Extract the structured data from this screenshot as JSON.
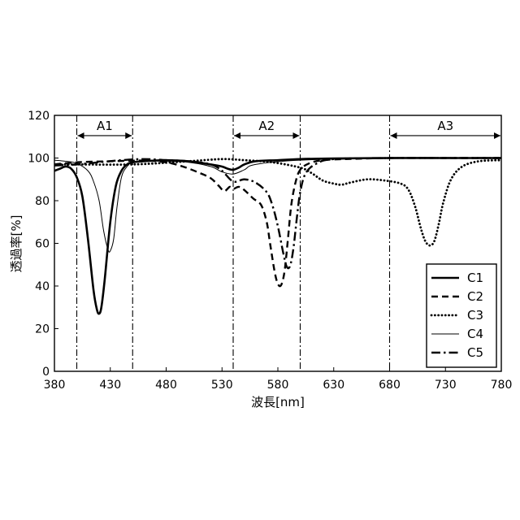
{
  "chart_data": {
    "type": "line",
    "title": "",
    "xlabel": "波長[nm]",
    "ylabel": "透過率[%]",
    "xlim": [
      380,
      780
    ],
    "ylim": [
      0,
      120
    ],
    "xticks": [
      380,
      430,
      480,
      530,
      580,
      630,
      680,
      730,
      780
    ],
    "yticks": [
      0,
      20,
      40,
      60,
      80,
      100,
      120
    ],
    "grid": false,
    "legend_position": "bottom-right",
    "regions": [
      {
        "label": "A1",
        "x0": 400,
        "x1": 450
      },
      {
        "label": "A2",
        "x0": 540,
        "x1": 600
      },
      {
        "label": "A3",
        "x0": 680,
        "x1": 780
      }
    ],
    "series": [
      {
        "name": "C1",
        "style": "solid-thick",
        "x": [
          380,
          385,
          390,
          395,
          400,
          405,
          410,
          415,
          418,
          420,
          422,
          425,
          430,
          435,
          440,
          445,
          450,
          460,
          480,
          500,
          520,
          530,
          535,
          540,
          545,
          550,
          560,
          580,
          600,
          630,
          680,
          730,
          780
        ],
        "y": [
          94,
          95,
          96,
          95,
          91,
          82,
          62,
          38,
          29,
          27,
          30,
          43,
          70,
          87,
          94,
          97,
          98,
          98.5,
          99,
          98.5,
          97,
          96,
          95,
          94.5,
          95.5,
          97,
          98.5,
          99,
          99.5,
          99.8,
          100,
          100,
          100
        ]
      },
      {
        "name": "C2",
        "style": "dashed",
        "x": [
          380,
          400,
          430,
          460,
          480,
          495,
          510,
          520,
          527,
          532,
          537,
          540,
          545,
          550,
          558,
          565,
          570,
          573,
          577,
          580,
          583,
          586,
          589,
          592,
          596,
          600,
          608,
          620,
          640,
          680,
          730,
          780
        ],
        "y": [
          97,
          98,
          98.5,
          98.8,
          98,
          96,
          93,
          90.5,
          87,
          84.5,
          86.5,
          85.5,
          86.5,
          85,
          81,
          78,
          70,
          60,
          47,
          41,
          40.5,
          47,
          62,
          78,
          89,
          94.5,
          97.5,
          99,
          99.5,
          100,
          100,
          100
        ]
      },
      {
        "name": "C3",
        "style": "dotted",
        "x": [
          380,
          400,
          450,
          500,
          530,
          550,
          575,
          600,
          610,
          620,
          630,
          637,
          645,
          660,
          675,
          690,
          697,
          703,
          708,
          712,
          716,
          720,
          724,
          728,
          735,
          745,
          760,
          780
        ],
        "y": [
          97,
          97,
          97,
          98.5,
          99.5,
          99,
          98,
          95.5,
          93,
          89.5,
          88,
          87.5,
          88.5,
          90,
          89.5,
          88,
          85,
          77,
          67,
          61,
          59,
          61,
          69,
          79,
          90,
          96,
          98.5,
          99
        ]
      },
      {
        "name": "C4",
        "style": "solid-thin",
        "x": [
          380,
          390,
          400,
          410,
          415,
          420,
          424,
          428,
          430,
          433,
          436,
          440,
          445,
          450,
          460,
          480,
          500,
          520,
          530,
          540,
          550,
          560,
          600,
          680,
          780
        ],
        "y": [
          99,
          98.5,
          97.5,
          94,
          89,
          80,
          66,
          57,
          56.5,
          62,
          77,
          91,
          96,
          98,
          98.5,
          98.5,
          98,
          96,
          93.5,
          92.5,
          94.5,
          97,
          99,
          100,
          100
        ]
      },
      {
        "name": "C5",
        "style": "dashdot",
        "x": [
          380,
          400,
          420,
          440,
          460,
          480,
          500,
          520,
          530,
          540,
          550,
          560,
          570,
          575,
          580,
          585,
          588,
          591,
          594,
          597,
          600,
          605,
          615,
          630,
          680,
          780
        ],
        "y": [
          96.5,
          97,
          98,
          99,
          99.5,
          99,
          98.5,
          97,
          94,
          89,
          90,
          88.5,
          84,
          78,
          68,
          55,
          49,
          49.5,
          58,
          72,
          84,
          93,
          97.5,
          99.5,
          100,
          100
        ]
      }
    ]
  }
}
